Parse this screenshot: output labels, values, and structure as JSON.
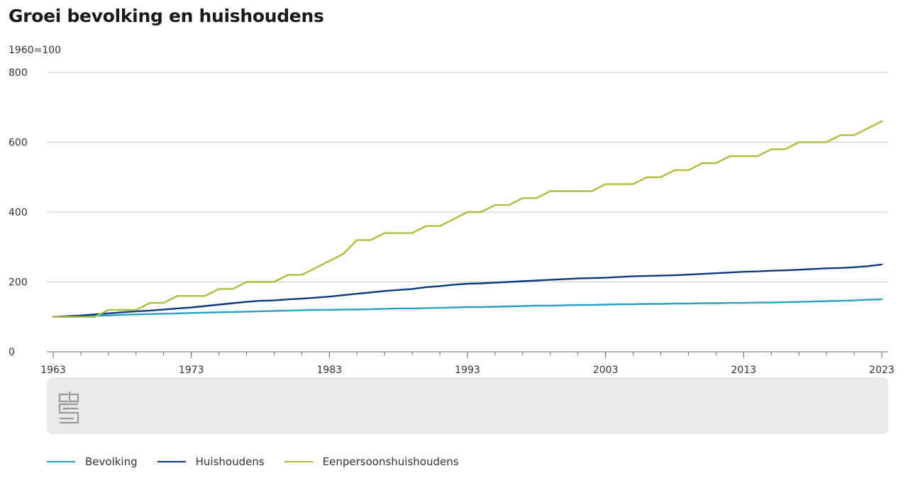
{
  "header": {
    "title": "Groei bevolking en huishoudens",
    "unit": "1960=100"
  },
  "icons": {
    "logo": "cbs-logo-icon"
  },
  "colors": {
    "grid": "#c8c8c8",
    "axis": "#666666",
    "footer_bg": "#e9e9e9",
    "logo": "#9a9a9a"
  },
  "chart_data": {
    "type": "line",
    "title": "Groei bevolking en huishoudens",
    "ylabel": "1960=100",
    "xlabel": "",
    "xlim": [
      1963,
      2023
    ],
    "ylim": [
      0,
      800
    ],
    "y_ticks": [
      0,
      200,
      400,
      600,
      800
    ],
    "y_tick_labels": [
      "0",
      "200",
      "400",
      "600",
      "800"
    ],
    "x_ticks": [
      1963,
      1973,
      1983,
      1993,
      2003,
      2013,
      2023
    ],
    "x_tick_labels": [
      "1963",
      "1973",
      "1983",
      "1993",
      "2003",
      "2013",
      "2023"
    ],
    "grid": true,
    "legend_position": "bottom",
    "x": [
      1963,
      1964,
      1965,
      1966,
      1967,
      1968,
      1969,
      1970,
      1971,
      1972,
      1973,
      1974,
      1975,
      1976,
      1977,
      1978,
      1979,
      1980,
      1981,
      1982,
      1983,
      1984,
      1985,
      1986,
      1987,
      1988,
      1989,
      1990,
      1991,
      1992,
      1993,
      1994,
      1995,
      1996,
      1997,
      1998,
      1999,
      2000,
      2001,
      2002,
      2003,
      2004,
      2005,
      2006,
      2007,
      2008,
      2009,
      2010,
      2011,
      2012,
      2013,
      2014,
      2015,
      2016,
      2017,
      2018,
      2019,
      2020,
      2021,
      2022,
      2023
    ],
    "series": [
      {
        "name": "Bevolking",
        "color": "#2a9fc0",
        "values": [
          100,
          101,
          102,
          103,
          104,
          106,
          107,
          108,
          109,
          110,
          111,
          112,
          113,
          114,
          115,
          116,
          117,
          118,
          119,
          120,
          120,
          121,
          121,
          122,
          123,
          124,
          124,
          125,
          126,
          127,
          128,
          128,
          129,
          130,
          131,
          132,
          132,
          133,
          134,
          134,
          135,
          136,
          136,
          137,
          137,
          138,
          138,
          139,
          139,
          140,
          140,
          141,
          141,
          142,
          143,
          144,
          145,
          146,
          147,
          149,
          150
        ]
      },
      {
        "name": "Huishoudens",
        "color": "#0a3b80",
        "values": [
          100,
          102,
          104,
          107,
          110,
          113,
          116,
          118,
          121,
          124,
          127,
          131,
          135,
          139,
          143,
          146,
          147,
          150,
          152,
          155,
          158,
          162,
          166,
          170,
          174,
          177,
          180,
          185,
          188,
          192,
          195,
          196,
          198,
          200,
          202,
          204,
          206,
          208,
          210,
          211,
          212,
          214,
          216,
          217,
          218,
          219,
          221,
          223,
          225,
          227,
          229,
          230,
          232,
          233,
          235,
          237,
          239,
          240,
          242,
          245,
          250
        ]
      },
      {
        "name": "Eenpersoonshuishoudens",
        "color": "#a6c13d",
        "values": [
          100,
          100,
          100,
          100,
          120,
          120,
          120,
          140,
          140,
          160,
          160,
          160,
          180,
          180,
          200,
          200,
          200,
          220,
          220,
          240,
          260,
          280,
          320,
          320,
          340,
          340,
          340,
          360,
          360,
          380,
          400,
          400,
          420,
          420,
          440,
          440,
          460,
          460,
          460,
          460,
          480,
          480,
          480,
          500,
          500,
          520,
          520,
          540,
          540,
          560,
          560,
          560,
          580,
          580,
          600,
          600,
          600,
          620,
          620,
          640,
          660
        ]
      }
    ]
  }
}
